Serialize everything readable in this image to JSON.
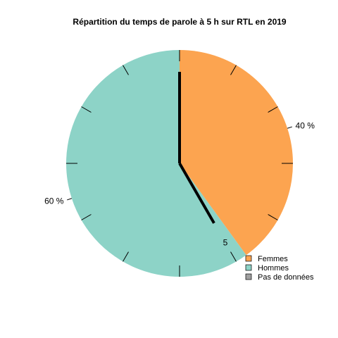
{
  "chart_data": {
    "type": "pie",
    "title": "Répartition du temps de parole à 5 h sur RTL en 2019",
    "slices": [
      {
        "name": "Femmes",
        "value": 40,
        "label": "40 %",
        "color": "#fca450"
      },
      {
        "name": "Hommes",
        "value": 60,
        "label": "60 %",
        "color": "#8dd3c7"
      }
    ],
    "legend": {
      "placement": "bottom-right",
      "entries": [
        {
          "label": "Femmes",
          "color": "#fca450"
        },
        {
          "label": "Hommes",
          "color": "#8dd3c7"
        },
        {
          "label": "Pas de données",
          "color": "#a0a0a0"
        }
      ]
    },
    "clock": {
      "hour": 5,
      "hour_label": "5",
      "tick_count": 12
    }
  }
}
